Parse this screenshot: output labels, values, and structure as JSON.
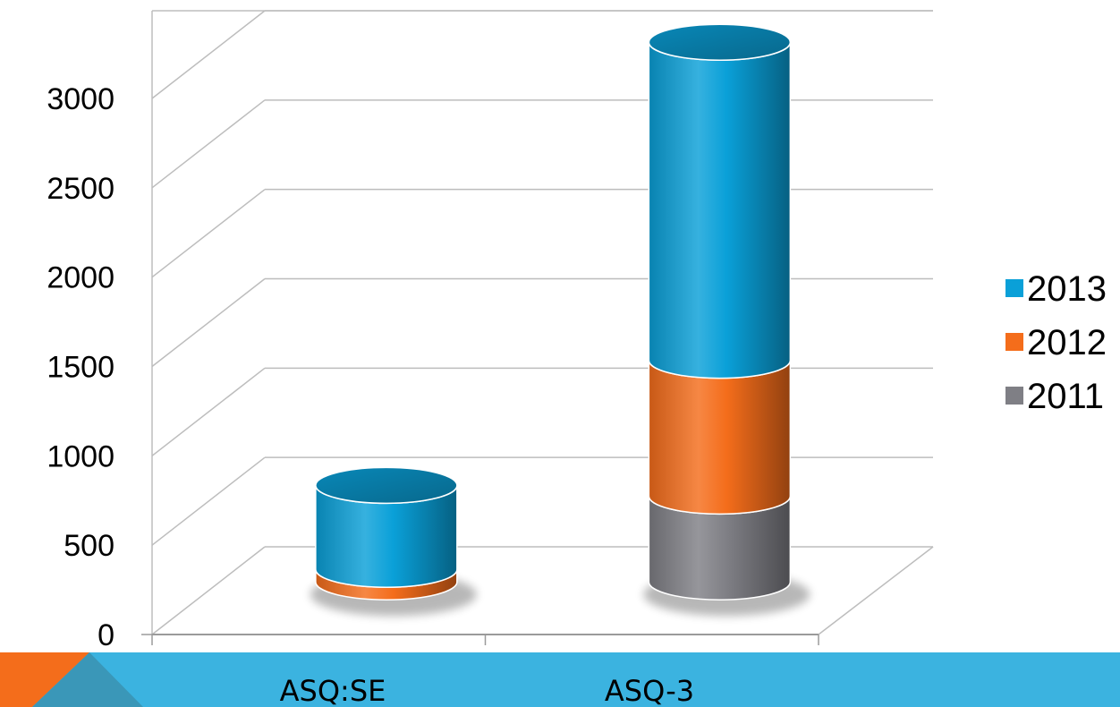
{
  "chart_data": {
    "type": "bar",
    "stacked": true,
    "style": "3d-cylinder",
    "categories": [
      "ASQ:SE",
      "ASQ-3"
    ],
    "series": [
      {
        "name": "2011",
        "values": [
          0,
          480
        ],
        "color": "#7f7f85"
      },
      {
        "name": "2012",
        "values": [
          70,
          760
        ],
        "color": "#f46d1b"
      },
      {
        "name": "2013",
        "values": [
          470,
          1780
        ],
        "color": "#0aa0d8"
      }
    ],
    "ylim": [
      0,
      3000
    ],
    "yticks": [
      "0",
      "500",
      "1000",
      "1500",
      "2000",
      "2500",
      "3000"
    ],
    "grid": true,
    "legend_position": "right",
    "legend_order": [
      "2013",
      "2012",
      "2011"
    ]
  },
  "decor": {
    "band_color": "#3bb3e0",
    "accent_color": "#f46d1b",
    "accent_dark": "#3a97b8"
  }
}
